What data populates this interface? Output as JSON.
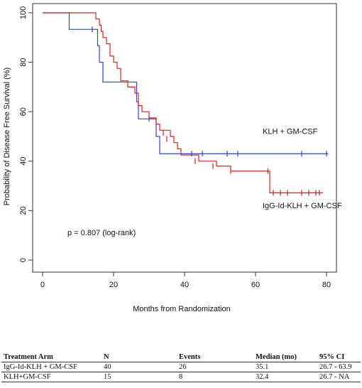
{
  "chart_data": {
    "type": "line",
    "subtype": "kaplan-meier",
    "title": "",
    "xlabel": "Months from Randomization",
    "ylabel": "Probability of Disease Free Survival (%)",
    "xlim": [
      0,
      80
    ],
    "ylim": [
      0,
      100
    ],
    "x_ticks": [
      0,
      20,
      40,
      60,
      80
    ],
    "y_ticks": [
      0,
      20,
      40,
      60,
      80,
      100
    ],
    "grid": false,
    "series": [
      {
        "name": "KLH + GM-CSF",
        "color": "#3344dd",
        "steps": [
          [
            0,
            100
          ],
          [
            7.5,
            93.3
          ],
          [
            15.5,
            86.7
          ],
          [
            16,
            80
          ],
          [
            17,
            72
          ],
          [
            26,
            72
          ],
          [
            26.5,
            64
          ],
          [
            27,
            57.1
          ],
          [
            30,
            57.1
          ],
          [
            32,
            50
          ],
          [
            33,
            43
          ],
          [
            80.5,
            43
          ]
        ],
        "censor": [
          [
            14,
            93.3
          ],
          [
            30,
            57.1
          ],
          [
            42,
            43
          ],
          [
            45,
            43
          ],
          [
            52,
            43
          ],
          [
            55,
            43
          ],
          [
            73,
            43
          ],
          [
            80,
            43
          ]
        ]
      },
      {
        "name": "IgG-Id-KLH + GM-CSF",
        "color": "#dd2222",
        "steps": [
          [
            0,
            100
          ],
          [
            15,
            97.5
          ],
          [
            16,
            95
          ],
          [
            16.5,
            92.5
          ],
          [
            17,
            90
          ],
          [
            18,
            87.5
          ],
          [
            19,
            82.5
          ],
          [
            20,
            80
          ],
          [
            21,
            77.5
          ],
          [
            22,
            72.5
          ],
          [
            24,
            70
          ],
          [
            26,
            67.5
          ],
          [
            27,
            62.5
          ],
          [
            28,
            60
          ],
          [
            30,
            57.5
          ],
          [
            32,
            55
          ],
          [
            33,
            52.5
          ],
          [
            36,
            50
          ],
          [
            37,
            47.5
          ],
          [
            38,
            45
          ],
          [
            39,
            42.5
          ],
          [
            44,
            40
          ],
          [
            49,
            38
          ],
          [
            53,
            36
          ],
          [
            64,
            27.2
          ],
          [
            79,
            27.2
          ]
        ],
        "censor": [
          [
            34,
            51.5
          ],
          [
            35,
            49
          ],
          [
            43,
            40
          ],
          [
            48,
            38
          ],
          [
            53,
            36
          ],
          [
            63.5,
            36
          ],
          [
            65,
            27.2
          ],
          [
            67,
            27.2
          ],
          [
            69,
            27.2
          ],
          [
            73,
            27.2
          ],
          [
            75,
            27.2
          ],
          [
            77,
            27.2
          ],
          [
            78,
            27.2
          ]
        ]
      }
    ],
    "annotations": [
      {
        "text": "KLH + GM-CSF",
        "x": 62,
        "y": 51
      },
      {
        "text": "IgG-Id-KLH + GM-CSF",
        "x": 62,
        "y": 21
      },
      {
        "text": "p = 0.807 (log-rank)",
        "x": 7,
        "y": 10
      }
    ]
  },
  "table": {
    "headers": [
      "Treatment Arm",
      "N",
      "Events",
      "Median (mo)",
      "95% CI"
    ],
    "rows": [
      [
        "IgG-Id-KLH + GM-CSF",
        "40",
        "26",
        "35.1",
        "26.7 - 63.9"
      ],
      [
        "KLH+GM-CSF",
        "15",
        "8",
        "32.4",
        "26.7 - NA"
      ]
    ]
  }
}
